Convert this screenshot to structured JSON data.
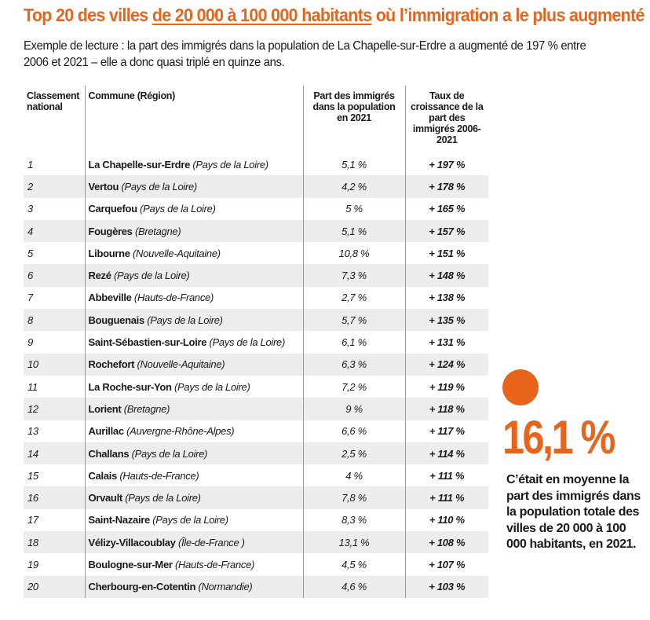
{
  "title": {
    "part1": "Top 20 des villes ",
    "underlined": "de 20 000 à 100 000 habitants",
    "part2": " où l’immigration a le plus augmenté"
  },
  "lede": {
    "label": "Exemple de lecture :",
    "text": " la part des immigrés dans la population de La Chapelle-sur-Erdre a augmenté de 197 % entre 2006 et 2021 – elle a donc quasi triplé en quinze ans."
  },
  "table": {
    "headers": {
      "rank": "Classement national",
      "commune": "Commune (Région)",
      "share": "Part des immigrés dans la population en 2021",
      "growth": "Taux de croissance de la part des immigrés 2006-2021"
    },
    "rows": [
      {
        "rank": "1",
        "city": "La Chapelle-sur-Erdre",
        "region": "(Pays de la Loire)",
        "share": "5,1 %",
        "growth": "+ 197 %"
      },
      {
        "rank": "2",
        "city": "Vertou",
        "region": "(Pays de la Loire)",
        "share": "4,2 %",
        "growth": "+ 178 %"
      },
      {
        "rank": "3",
        "city": "Carquefou",
        "region": "(Pays de la Loire)",
        "share": "5 %",
        "growth": "+ 165 %"
      },
      {
        "rank": "4",
        "city": "Fougères",
        "region": "(Bretagne)",
        "share": "5,1 %",
        "growth": "+ 157 %"
      },
      {
        "rank": "5",
        "city": "Libourne",
        "region": "(Nouvelle-Aquitaine)",
        "share": "10,8 %",
        "growth": "+ 151 %"
      },
      {
        "rank": "6",
        "city": "Rezé",
        "region": "(Pays de la Loire)",
        "share": "7,3 %",
        "growth": "+ 148 %"
      },
      {
        "rank": "7",
        "city": "Abbeville",
        "region": "(Hauts-de-France)",
        "share": "2,7 %",
        "growth": "+ 138 %"
      },
      {
        "rank": "8",
        "city": "Bouguenais",
        "region": "(Pays de la Loire)",
        "share": "5,7 %",
        "growth": "+ 135 %"
      },
      {
        "rank": "9",
        "city": "Saint-Sébastien-sur-Loire",
        "region": "(Pays de la Loire)",
        "share": "6,1 %",
        "growth": "+ 131 %"
      },
      {
        "rank": "10",
        "city": "Rochefort",
        "region": "(Nouvelle-Aquitaine)",
        "share": "6,3 %",
        "growth": "+ 124 %"
      },
      {
        "rank": "11",
        "city": "La Roche-sur-Yon",
        "region": "(Pays de la Loire)",
        "share": "7,2 %",
        "growth": "+ 119 %"
      },
      {
        "rank": "12",
        "city": "Lorient",
        "region": "(Bretagne)",
        "share": "9 %",
        "growth": "+ 118 %"
      },
      {
        "rank": "13",
        "city": "Aurillac",
        "region": "(Auvergne-Rhône-Alpes)",
        "share": "6,6 %",
        "growth": "+ 117 %"
      },
      {
        "rank": "14",
        "city": "Challans",
        "region": "(Pays de la Loire)",
        "share": "2,5 %",
        "growth": "+ 114 %"
      },
      {
        "rank": "15",
        "city": "Calais",
        "region": "(Hauts-de-France)",
        "share": "4 %",
        "growth": "+ 111 %"
      },
      {
        "rank": "16",
        "city": "Orvault",
        "region": "(Pays de la Loire)",
        "share": "7,8 %",
        "growth": "+ 111 %"
      },
      {
        "rank": "17",
        "city": "Saint-Nazaire",
        "region": "(Pays de la Loire)",
        "share": "8,3 %",
        "growth": "+ 110 %"
      },
      {
        "rank": "18",
        "city": "Vélizy-Villacoublay",
        "region": "(Île-de-France )",
        "share": "13,1 %",
        "growth": "+ 108 %"
      },
      {
        "rank": "19",
        "city": "Boulogne-sur-Mer",
        "region": "(Hauts-de-France)",
        "share": "4,5 %",
        "growth": "+ 107 %"
      },
      {
        "rank": "20",
        "city": "Cherbourg-en-Cotentin",
        "region": "(Normandie)",
        "share": "4,6 %",
        "growth": "+ 103 %"
      }
    ]
  },
  "callout": {
    "value": "16,1 %",
    "text": "C’était en moyenne la part des immigrés dans la population totale des villes de 20 000 à 100 000 habitants, en 2021.",
    "accent_color": "#e8641b"
  }
}
